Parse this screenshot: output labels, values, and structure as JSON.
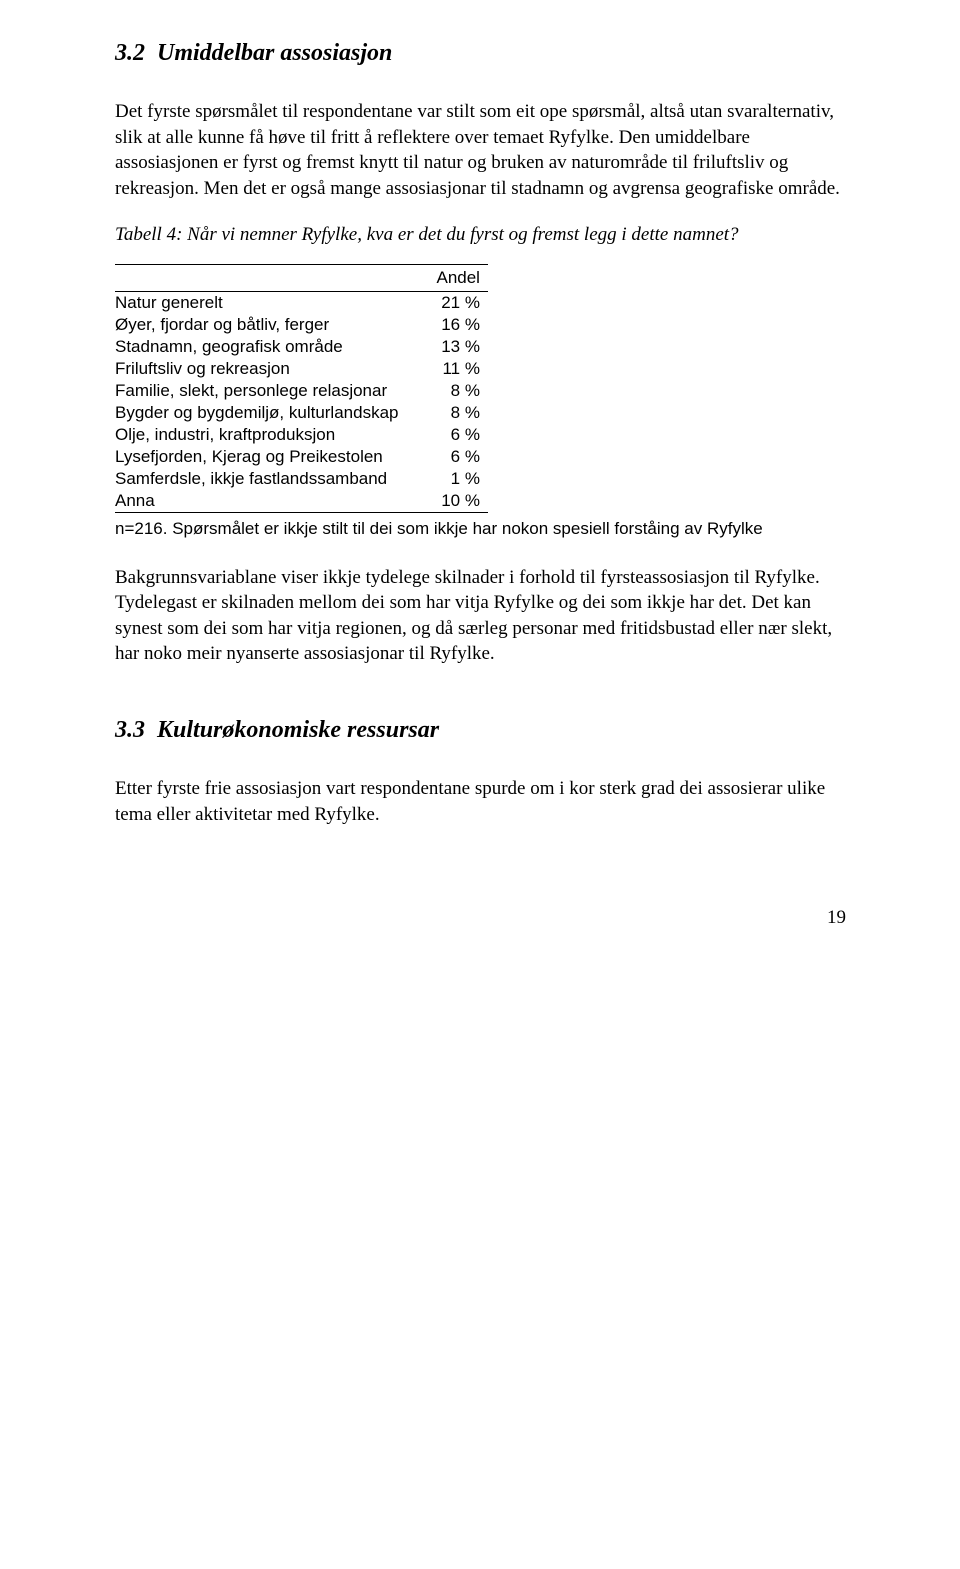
{
  "section1": {
    "number": "3.2",
    "title": "Umiddelbar assosiasjon"
  },
  "para1": "Det fyrste spørsmålet til respondentane var stilt som eit ope spørsmål, altså utan svaralternativ, slik at alle kunne få høve til fritt å reflektere over temaet Ryfylke. Den umiddelbare assosiasjonen er fyrst og fremst knytt til natur og bruken av naturområde til friluftsliv og rekreasjon. Men det er også mange assosiasjonar til stadnamn og avgrensa geografiske område.",
  "table": {
    "caption": "Tabell 4: Når vi nemner Ryfylke, kva er det du fyrst og fremst legg i  dette namnet?",
    "header": "Andel",
    "rows": [
      {
        "label": "Natur generelt",
        "value": "21 %"
      },
      {
        "label": "Øyer, fjordar og båtliv, ferger",
        "value": "16 %"
      },
      {
        "label": "Stadnamn, geografisk område",
        "value": "13 %"
      },
      {
        "label": "Friluftsliv og rekreasjon",
        "value": "11 %"
      },
      {
        "label": "Familie, slekt,  personlege relasjonar",
        "value": "8 %"
      },
      {
        "label": "Bygder og bygdemiljø, kulturlandskap",
        "value": "8 %"
      },
      {
        "label": "Olje, industri, kraftproduksjon",
        "value": "6 %"
      },
      {
        "label": "Lysefjorden, Kjerag og Preikestolen",
        "value": "6 %"
      },
      {
        "label": "Samferdsle, ikkje fastlandssamband",
        "value": "1 %"
      },
      {
        "label": "Anna",
        "value": "10 %"
      }
    ],
    "note": "n=216. Spørsmålet er ikkje stilt til dei som ikkje har nokon spesiell forståing av Ryfylke"
  },
  "para2": "Bakgrunnsvariablane viser ikkje tydelege skilnader i forhold til fyrsteassosiasjon til Ryfylke. Tydelegast er skilnaden mellom dei som har vitja Ryfylke og dei som ikkje har det. Det kan synest som dei som har vitja regionen, og då særleg personar med fritidsbustad eller nær slekt, har noko meir nyanserte assosiasjonar til Ryfylke.",
  "section2": {
    "number": "3.3",
    "title": "Kulturøkonomiske ressursar"
  },
  "para3": "Etter fyrste frie assosiasjon vart respondentane spurde om i kor sterk grad dei assosierar ulike tema eller aktivitetar med Ryfylke.",
  "pageNumber": "19"
}
